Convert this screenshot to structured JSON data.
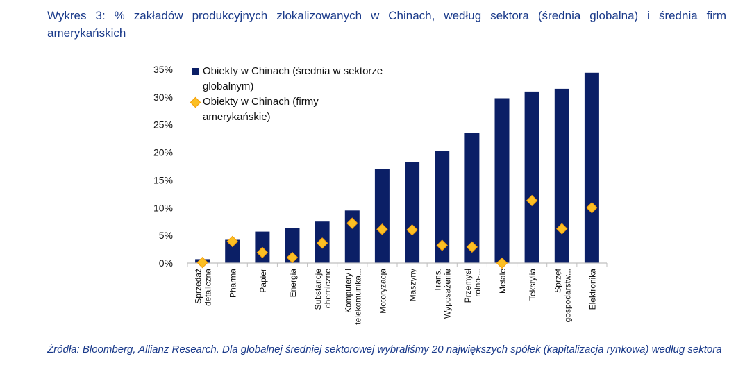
{
  "title": "Wykres 3: % zakładów produkcyjnych zlokalizowanych w Chinach, według sektora (średnia globalna) i średnia firm amerykańskich",
  "source": "Źródła: Bloomberg, Allianz Research. Dla globalnej średniej sektorowej wybraliśmy 20 największych spółek (kapitalizacja rynkowa) według sektora",
  "colors": {
    "bar": "#0b1f66",
    "marker": "#fbbf24",
    "marker_edge": "#f59e0b",
    "title": "#1a3a8a"
  },
  "chart_data": {
    "type": "bar",
    "categories": [
      "Sprzedaż detaliczna",
      "Pharma",
      "Papier",
      "Energia",
      "Substancje chemiczne",
      "Komputery i telekomunika...",
      "Motoryzacja",
      "Maszyny",
      "Trans. Wyposażenie",
      "Przemysł rolno-...",
      "Metale",
      "Tekstylia",
      "Sprzęt gospodarstw...",
      "Elektronika"
    ],
    "category_lines": [
      [
        "Sprzedaż",
        "detaliczna"
      ],
      [
        "Pharma"
      ],
      [
        "Papier"
      ],
      [
        "Energia"
      ],
      [
        "Substancje",
        "chemiczne"
      ],
      [
        "Komputery i",
        "telekomunika..."
      ],
      [
        "Motoryzacja"
      ],
      [
        "Maszyny"
      ],
      [
        "Trans.",
        "Wyposażenie"
      ],
      [
        "Przemysł",
        "rolno-..."
      ],
      [
        "Metale"
      ],
      [
        "Tekstylia"
      ],
      [
        "Sprzęt",
        "gospodarstw..."
      ],
      [
        "Elektronika"
      ]
    ],
    "series": [
      {
        "name": "Obiekty w Chinach (średnia w sektorze globalnym)",
        "kind": "bar",
        "values": [
          0.7,
          4.2,
          5.7,
          6.4,
          7.5,
          9.5,
          17.0,
          18.3,
          20.3,
          23.5,
          29.8,
          31.0,
          31.5,
          34.4
        ]
      },
      {
        "name": "Obiekty w Chinach (firmy amerykańskie)",
        "kind": "marker",
        "values": [
          0.1,
          3.9,
          1.9,
          1.0,
          3.6,
          7.2,
          6.1,
          6.0,
          3.2,
          2.9,
          0.0,
          11.3,
          6.2,
          10.0
        ]
      }
    ],
    "legend_lines": [
      [
        "Obiekty w Chinach (średnia w sektorze",
        "globalnym)"
      ],
      [
        "Obiekty w Chinach (firmy",
        "amerykańskie)"
      ]
    ],
    "yticks": [
      "0%",
      "5%",
      "10%",
      "15%",
      "20%",
      "25%",
      "30%",
      "35%"
    ],
    "ylim": [
      0,
      35
    ],
    "grid": false,
    "legend_position": "top-left"
  }
}
